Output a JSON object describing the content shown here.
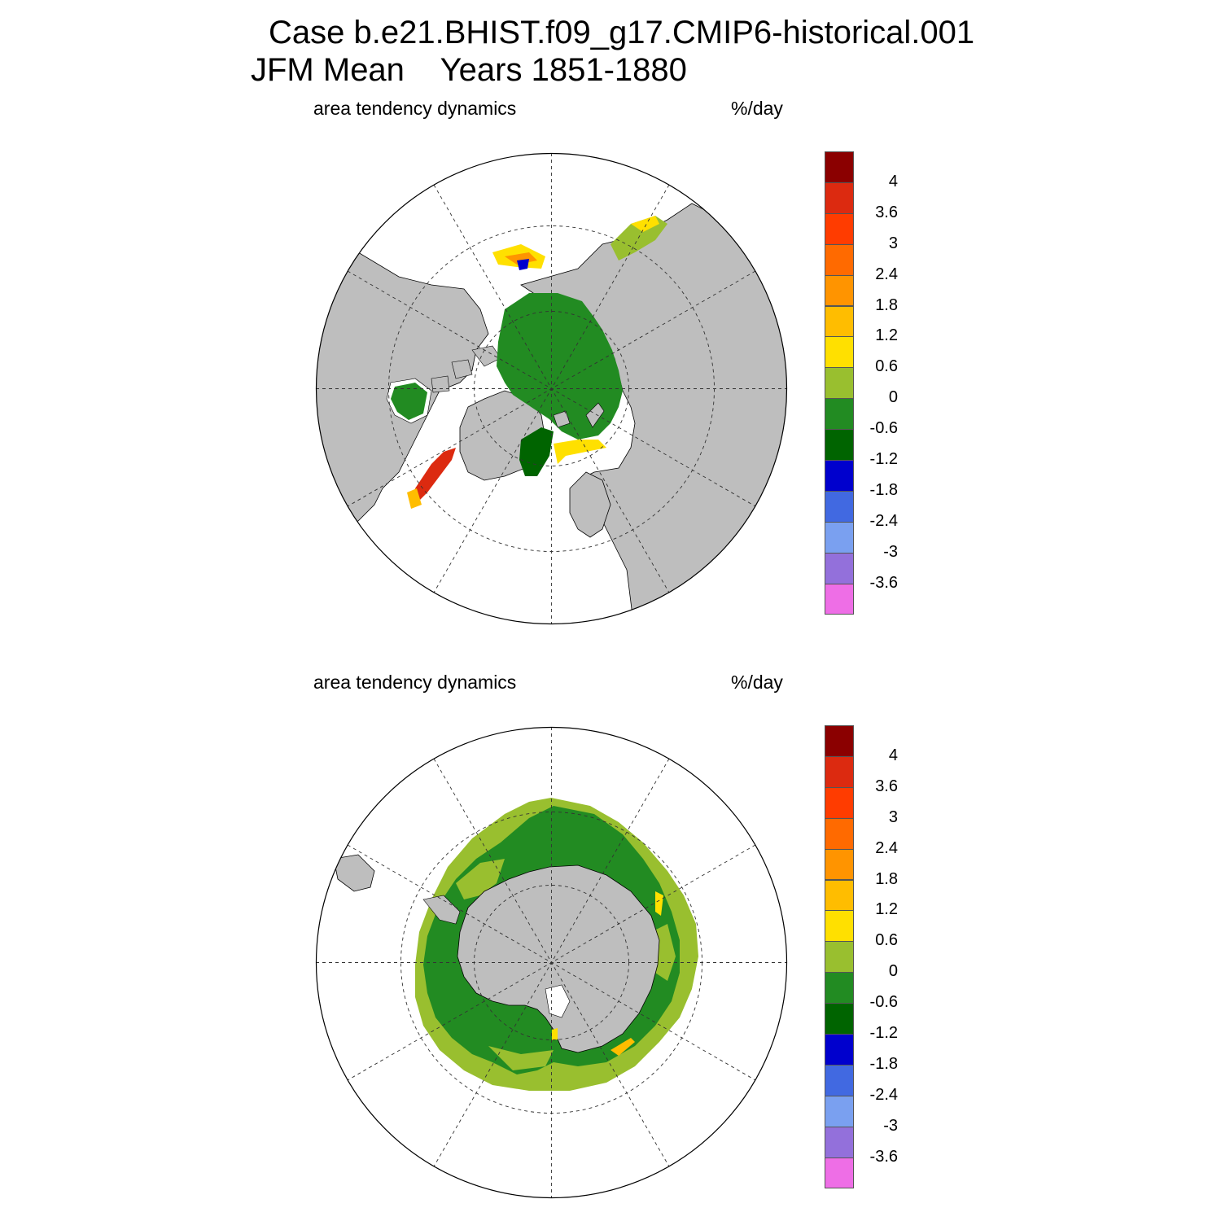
{
  "title": {
    "line1": "Case b.e21.BHIST.f09_g17.CMIP6-historical.001",
    "line2_left": "JFM Mean",
    "line2_right": "Years 1851-1880"
  },
  "panels": [
    {
      "id": "north",
      "hemisphere": "Northern Hemisphere (polar stereographic)",
      "label": "area tendency dynamics",
      "units": "%/day"
    },
    {
      "id": "south",
      "hemisphere": "Southern Hemisphere (polar stereographic)",
      "label": "area tendency dynamics",
      "units": "%/day"
    }
  ],
  "colorbar": {
    "ticks": [
      "4",
      "3.6",
      "3",
      "2.4",
      "1.8",
      "1.2",
      "0.6",
      "0",
      "-0.6",
      "-1.2",
      "-1.8",
      "-2.4",
      "-3",
      "-3.6"
    ],
    "colors": [
      "#8b0000",
      "#dc2a10",
      "#ff3c00",
      "#ff6a00",
      "#ff9400",
      "#ffbd00",
      "#ffe000",
      "#99bf2f",
      "#228b22",
      "#006400",
      "#0000cd",
      "#4169e1",
      "#7aa0f0",
      "#9370db",
      "#ee6ee6"
    ]
  },
  "colors": {
    "land": "#bebebe",
    "ocean": "#ffffff",
    "ice_green": "#228b22",
    "ice_dark_green": "#006400",
    "ice_olive": "#99bf2f",
    "ice_yellow": "#ffe000",
    "ice_orange": "#ff9400",
    "ice_red": "#dc2a10"
  }
}
